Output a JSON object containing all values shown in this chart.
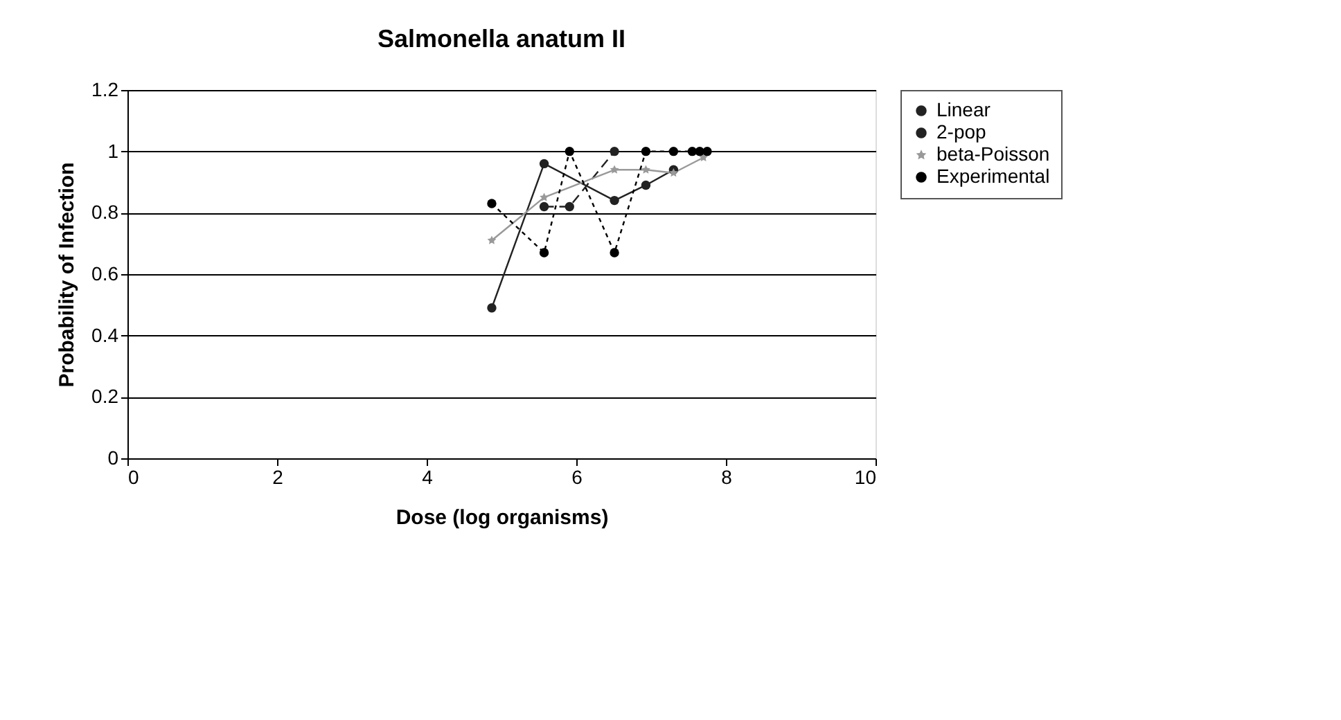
{
  "chart_data": {
    "type": "line",
    "title": "Salmonella anatum II",
    "xlabel": "Dose (log organisms)",
    "ylabel": "Probability of Infection",
    "xlim": [
      0,
      10
    ],
    "xticks": [
      0,
      2,
      4,
      6,
      8,
      10
    ],
    "ylim": [
      0,
      1.2
    ],
    "yticks": [
      0,
      0.2,
      0.4,
      0.6,
      0.8,
      1,
      1.2
    ],
    "grid": "y",
    "legend": "right",
    "series": [
      {
        "name": "Linear",
        "color": "#222222",
        "marker": "circle",
        "line_style": "solid",
        "x": [
          4.87,
          5.57,
          6.51,
          6.93,
          7.3
        ],
        "values": [
          0.49,
          0.96,
          0.84,
          0.89,
          0.94
        ]
      },
      {
        "name": "2-pop",
        "color": "#222222",
        "marker": "circle",
        "line_style": "dashed",
        "x": [
          5.57,
          5.91,
          6.51
        ],
        "values": [
          0.82,
          0.82,
          1.0
        ]
      },
      {
        "name": "beta-Poisson",
        "color": "#999999",
        "marker": "star",
        "line_style": "solid",
        "x": [
          4.87,
          5.57,
          6.51,
          6.93,
          7.3,
          7.7
        ],
        "values": [
          0.71,
          0.85,
          0.94,
          0.94,
          0.93,
          0.98
        ]
      },
      {
        "name": "Experimental",
        "color": "#000000",
        "marker": "circle",
        "line_style": "dotted",
        "x": [
          4.87,
          5.57,
          5.91,
          6.51,
          6.93,
          7.3,
          7.55,
          7.65,
          7.75
        ],
        "values": [
          0.83,
          0.67,
          1.0,
          0.67,
          1.0,
          1.0,
          1.0,
          1.0,
          1.0
        ]
      }
    ]
  }
}
